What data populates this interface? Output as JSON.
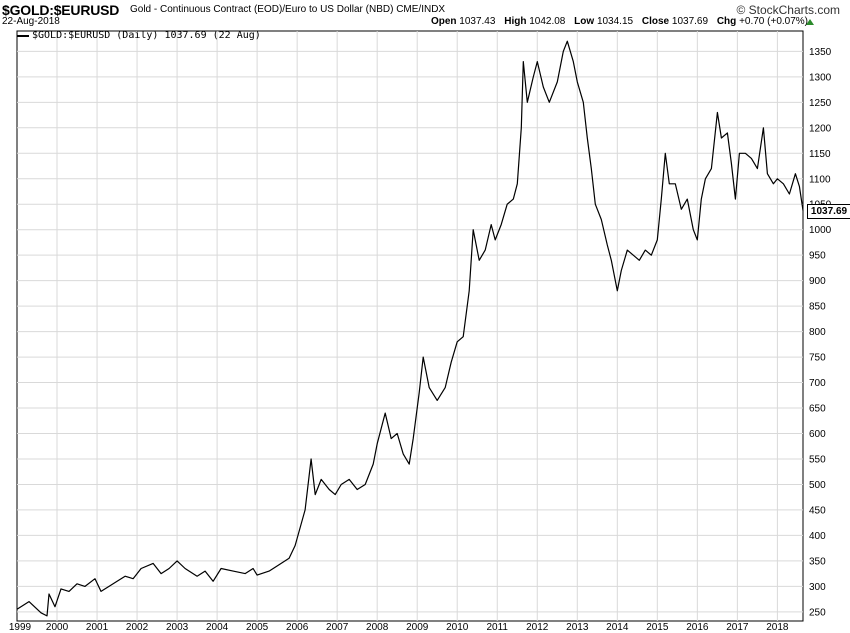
{
  "header": {
    "symbol": "$GOLD:$EURUSD",
    "description": "Gold - Continuous Contract (EOD)/Euro to US Dollar (NBD)  CME/INDX",
    "brand": "© StockCharts.com",
    "date": "22-Aug-2018",
    "open_label": "Open",
    "open": "1037.43",
    "high_label": "High",
    "high": "1042.08",
    "low_label": "Low",
    "low": "1034.15",
    "close_label": "Close",
    "close": "1037.69",
    "chg_label": "Chg",
    "chg": "+0.70 (+0.07%)"
  },
  "legend": {
    "text": "$GOLD:$EURUSD (Daily) 1037.69 (22 Aug)"
  },
  "last_value": "1037.69",
  "colors": {
    "line": "#000000",
    "grid": "#d9d9d9",
    "up": "#2a8a2a"
  },
  "chart_data": {
    "type": "line",
    "title": "$GOLD:$EURUSD",
    "series": [
      {
        "name": "$GOLD:$EURUSD (Daily)",
        "points": [
          [
            1999.0,
            255
          ],
          [
            1999.3,
            270
          ],
          [
            1999.6,
            248
          ],
          [
            1999.75,
            242
          ],
          [
            1999.8,
            285
          ],
          [
            1999.95,
            260
          ],
          [
            2000.1,
            295
          ],
          [
            2000.3,
            290
          ],
          [
            2000.5,
            305
          ],
          [
            2000.7,
            300
          ],
          [
            2000.95,
            315
          ],
          [
            2001.1,
            290
          ],
          [
            2001.3,
            300
          ],
          [
            2001.5,
            310
          ],
          [
            2001.7,
            320
          ],
          [
            2001.9,
            315
          ],
          [
            2002.1,
            335
          ],
          [
            2002.4,
            345
          ],
          [
            2002.6,
            325
          ],
          [
            2002.8,
            335
          ],
          [
            2003.0,
            350
          ],
          [
            2003.2,
            335
          ],
          [
            2003.5,
            320
          ],
          [
            2003.7,
            330
          ],
          [
            2003.9,
            310
          ],
          [
            2004.1,
            335
          ],
          [
            2004.4,
            330
          ],
          [
            2004.7,
            325
          ],
          [
            2004.9,
            335
          ],
          [
            2005.0,
            322
          ],
          [
            2005.3,
            330
          ],
          [
            2005.5,
            340
          ],
          [
            2005.8,
            355
          ],
          [
            2005.95,
            380
          ],
          [
            2006.2,
            450
          ],
          [
            2006.35,
            550
          ],
          [
            2006.45,
            480
          ],
          [
            2006.6,
            510
          ],
          [
            2006.8,
            490
          ],
          [
            2006.95,
            480
          ],
          [
            2007.1,
            500
          ],
          [
            2007.3,
            510
          ],
          [
            2007.5,
            490
          ],
          [
            2007.7,
            500
          ],
          [
            2007.9,
            540
          ],
          [
            2008.0,
            580
          ],
          [
            2008.2,
            640
          ],
          [
            2008.35,
            590
          ],
          [
            2008.5,
            600
          ],
          [
            2008.65,
            560
          ],
          [
            2008.8,
            540
          ],
          [
            2008.9,
            590
          ],
          [
            2009.05,
            680
          ],
          [
            2009.15,
            750
          ],
          [
            2009.3,
            690
          ],
          [
            2009.5,
            665
          ],
          [
            2009.7,
            690
          ],
          [
            2009.85,
            740
          ],
          [
            2010.0,
            780
          ],
          [
            2010.15,
            790
          ],
          [
            2010.3,
            880
          ],
          [
            2010.4,
            1000
          ],
          [
            2010.55,
            940
          ],
          [
            2010.7,
            960
          ],
          [
            2010.85,
            1010
          ],
          [
            2010.95,
            980
          ],
          [
            2011.1,
            1010
          ],
          [
            2011.25,
            1050
          ],
          [
            2011.4,
            1060
          ],
          [
            2011.5,
            1090
          ],
          [
            2011.6,
            1200
          ],
          [
            2011.65,
            1330
          ],
          [
            2011.75,
            1250
          ],
          [
            2011.9,
            1300
          ],
          [
            2012.0,
            1330
          ],
          [
            2012.15,
            1280
          ],
          [
            2012.3,
            1250
          ],
          [
            2012.5,
            1290
          ],
          [
            2012.65,
            1350
          ],
          [
            2012.75,
            1370
          ],
          [
            2012.9,
            1330
          ],
          [
            2013.0,
            1290
          ],
          [
            2013.15,
            1250
          ],
          [
            2013.25,
            1180
          ],
          [
            2013.35,
            1120
          ],
          [
            2013.45,
            1050
          ],
          [
            2013.6,
            1020
          ],
          [
            2013.75,
            970
          ],
          [
            2013.85,
            940
          ],
          [
            2014.0,
            880
          ],
          [
            2014.1,
            920
          ],
          [
            2014.25,
            960
          ],
          [
            2014.4,
            950
          ],
          [
            2014.55,
            940
          ],
          [
            2014.7,
            960
          ],
          [
            2014.85,
            950
          ],
          [
            2015.0,
            980
          ],
          [
            2015.1,
            1060
          ],
          [
            2015.2,
            1150
          ],
          [
            2015.3,
            1090
          ],
          [
            2015.45,
            1090
          ],
          [
            2015.6,
            1040
          ],
          [
            2015.75,
            1060
          ],
          [
            2015.9,
            1000
          ],
          [
            2016.0,
            980
          ],
          [
            2016.1,
            1060
          ],
          [
            2016.2,
            1100
          ],
          [
            2016.35,
            1120
          ],
          [
            2016.5,
            1230
          ],
          [
            2016.6,
            1180
          ],
          [
            2016.75,
            1190
          ],
          [
            2016.85,
            1130
          ],
          [
            2016.95,
            1060
          ],
          [
            2017.05,
            1150
          ],
          [
            2017.2,
            1150
          ],
          [
            2017.35,
            1140
          ],
          [
            2017.5,
            1120
          ],
          [
            2017.65,
            1200
          ],
          [
            2017.75,
            1110
          ],
          [
            2017.9,
            1090
          ],
          [
            2018.0,
            1100
          ],
          [
            2018.15,
            1090
          ],
          [
            2018.3,
            1070
          ],
          [
            2018.45,
            1110
          ],
          [
            2018.55,
            1085
          ],
          [
            2018.64,
            1037.69
          ]
        ]
      }
    ],
    "xlim": [
      1999,
      2018.64
    ],
    "ylim": [
      232,
      1390
    ],
    "x_ticks": [
      "1999",
      "2000",
      "2001",
      "2002",
      "2003",
      "2004",
      "2005",
      "2006",
      "2007",
      "2008",
      "2009",
      "2010",
      "2011",
      "2012",
      "2013",
      "2014",
      "2015",
      "2016",
      "2017",
      "2018"
    ],
    "y_ticks": [
      250,
      300,
      350,
      400,
      450,
      500,
      550,
      600,
      650,
      700,
      750,
      800,
      850,
      900,
      950,
      1000,
      1050,
      1100,
      1150,
      1200,
      1250,
      1300,
      1350
    ],
    "grid": true,
    "legend_position": "top-left"
  }
}
